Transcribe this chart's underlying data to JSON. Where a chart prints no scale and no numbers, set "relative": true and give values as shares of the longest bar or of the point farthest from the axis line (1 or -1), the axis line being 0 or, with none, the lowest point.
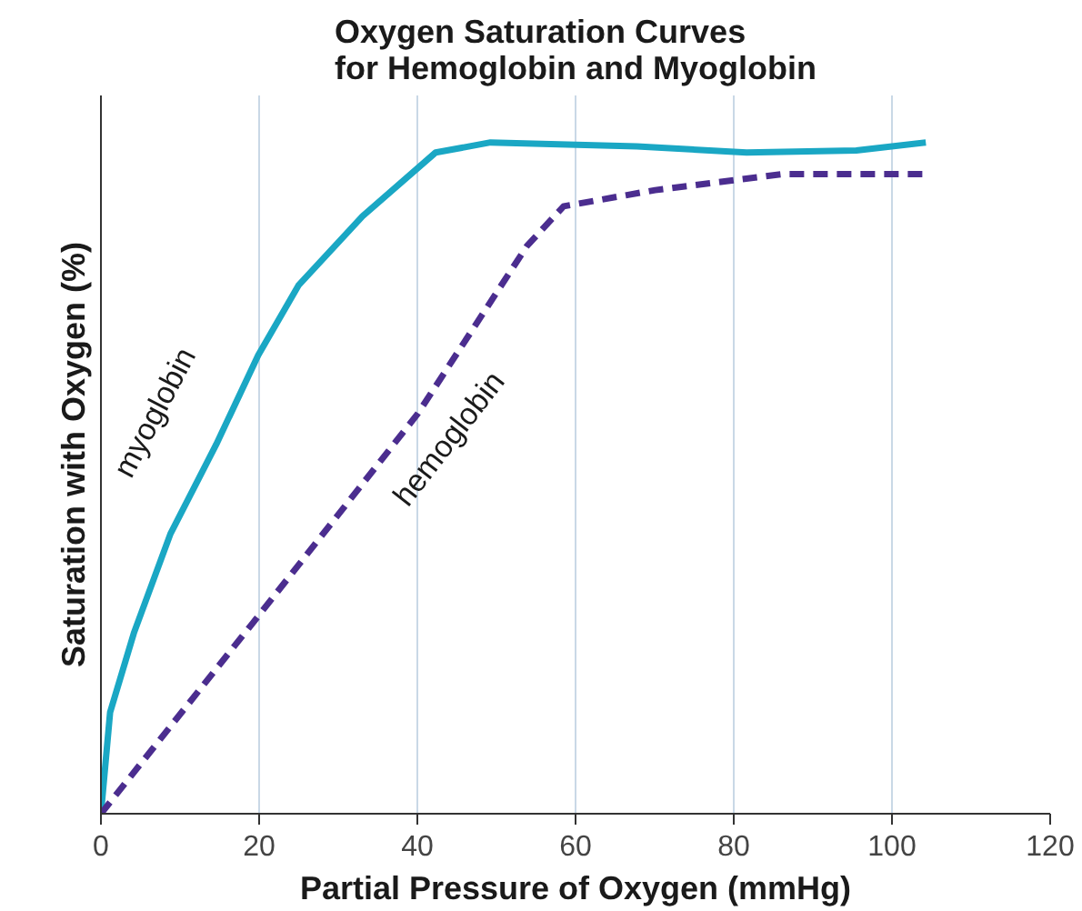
{
  "chart_data": {
    "type": "line",
    "title": "Oxygen Saturation Curves\nfor Hemoglobin and Myoglobin",
    "xlabel": "Partial Pressure of Oxygen (mmHg)",
    "ylabel": "Saturation with Oxygen (%)",
    "relative": true,
    "xlim": [
      0,
      120
    ],
    "xticks": [
      0,
      20,
      40,
      60,
      80,
      100,
      120
    ],
    "grid": "x",
    "tick_labels": "x",
    "series": [
      {
        "name": "myoglobin",
        "color": "#1aa7c4",
        "line_style": "solid",
        "x": [
          0,
          1.16,
          4.16,
          8.79,
          14.57,
          19.88,
          24.97,
          33.06,
          42.31,
          49.25,
          67.75,
          81.62,
          95.49,
          104.28
        ],
        "values": [
          0,
          0.151,
          0.269,
          0.417,
          0.55,
          0.683,
          0.787,
          0.89,
          0.985,
          1.0,
          0.994,
          0.985,
          0.988,
          1.0
        ]
      },
      {
        "name": "hemoglobin",
        "color": "#4b2d8f",
        "line_style": "dashed",
        "x": [
          0,
          19.19,
          40.0,
          53.87,
          58.5,
          70.06,
          86.24,
          104.28
        ],
        "values": [
          0,
          0.284,
          0.595,
          0.846,
          0.905,
          0.929,
          0.953,
          0.953
        ]
      }
    ]
  }
}
